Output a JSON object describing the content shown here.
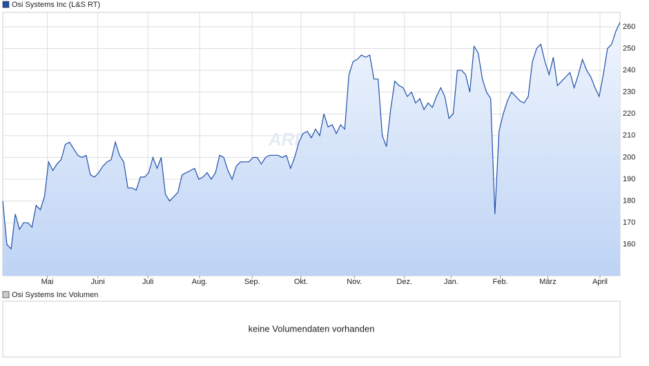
{
  "chart_data": {
    "type": "line",
    "series": [
      {
        "name": "Osi Systems Inc (L&S RT)",
        "color": "#1f4fa8",
        "values": [
          180,
          160,
          158,
          174,
          167,
          170,
          170,
          168,
          178,
          176,
          182,
          198,
          194,
          197,
          199,
          206,
          207,
          204,
          201,
          200,
          201,
          192,
          191,
          193,
          196,
          198,
          199,
          207,
          201,
          198,
          186,
          186,
          185,
          191,
          191,
          193,
          200,
          195,
          200,
          183,
          180,
          182,
          184,
          192,
          193,
          194,
          195,
          190,
          191,
          193,
          190,
          193,
          201,
          200,
          194,
          190,
          196,
          198,
          198,
          198,
          200,
          200,
          197,
          200,
          201,
          201,
          201,
          200,
          201,
          195,
          200,
          207,
          211,
          212,
          209,
          213,
          210,
          220,
          214,
          215,
          211,
          215,
          213,
          238,
          244,
          245,
          247,
          246,
          247,
          236,
          236,
          210,
          205,
          222,
          235,
          233,
          232,
          228,
          230,
          225,
          227,
          222,
          225,
          223,
          228,
          232,
          228,
          218,
          220,
          240,
          240,
          238,
          230,
          251,
          248,
          236,
          230,
          227,
          174,
          212,
          220,
          226,
          230,
          228,
          226,
          225,
          228,
          244,
          250,
          252,
          244,
          238,
          246,
          233,
          235,
          237,
          239,
          232,
          238,
          245,
          240,
          237,
          232,
          228,
          238,
          250,
          252,
          258,
          262
        ]
      }
    ],
    "xlim": [
      0,
      148
    ],
    "xticks": [
      {
        "value": 10.67,
        "label": "Mai"
      },
      {
        "value": 22.8,
        "label": "Juni"
      },
      {
        "value": 34.8,
        "label": "Juli"
      },
      {
        "value": 47.2,
        "label": "Aug."
      },
      {
        "value": 59.8,
        "label": "Sep."
      },
      {
        "value": 71.5,
        "label": "Okt."
      },
      {
        "value": 84.3,
        "label": "Nov."
      },
      {
        "value": 96.3,
        "label": "Dez."
      },
      {
        "value": 107.5,
        "label": "Jan."
      },
      {
        "value": 119.3,
        "label": "Feb."
      },
      {
        "value": 130.7,
        "label": "März"
      },
      {
        "value": 143.2,
        "label": "April"
      }
    ],
    "ylim": [
      145.7,
      266.6
    ],
    "yticks": [
      160,
      170,
      180,
      190,
      200,
      210,
      220,
      230,
      240,
      250,
      260
    ],
    "grid": true,
    "watermark": "ARIVA.DE"
  },
  "volume_panel": {
    "legend": "Osi Systems Inc Volumen",
    "message": "keine Volumendaten vorhanden"
  }
}
